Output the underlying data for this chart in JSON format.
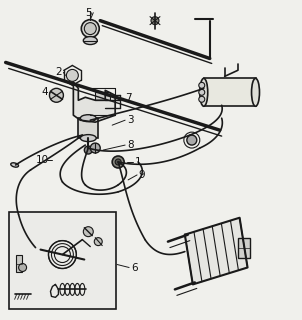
{
  "bg_color": "#f0f0ec",
  "line_color": "#1a1a1a",
  "label_color": "#111111",
  "figsize": [
    3.02,
    3.2
  ],
  "dpi": 100
}
